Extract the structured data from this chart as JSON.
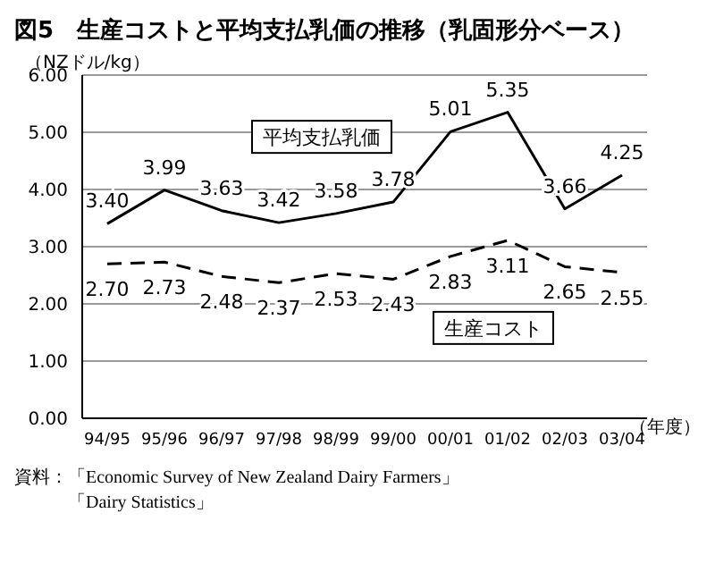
{
  "chart_data": {
    "type": "line",
    "title": "図5　生産コストと平均支払乳価の推移（乳固形分ベース）",
    "ylabel": "（NZドル/kg）",
    "xlabel": "（年度）",
    "categories": [
      "94/95",
      "95/96",
      "96/97",
      "97/98",
      "98/99",
      "99/00",
      "00/01",
      "01/02",
      "02/03",
      "03/04"
    ],
    "series": [
      {
        "name": "平均支払乳価",
        "color": "#000000",
        "line_style": "solid",
        "values": [
          3.4,
          3.99,
          3.63,
          3.42,
          3.58,
          3.78,
          5.01,
          5.35,
          3.66,
          4.25
        ],
        "value_labels": [
          "3.40",
          "3.99",
          "3.63",
          "3.42",
          "3.58",
          "3.78",
          "5.01",
          "5.35",
          "3.66",
          "4.25"
        ]
      },
      {
        "name": "生産コスト",
        "color": "#000000",
        "line_style": "dashed",
        "values": [
          2.7,
          2.73,
          2.48,
          2.37,
          2.53,
          2.43,
          2.83,
          3.11,
          2.65,
          2.55
        ],
        "value_labels": [
          "2.70",
          "2.73",
          "2.48",
          "2.37",
          "2.53",
          "2.43",
          "2.83",
          "3.11",
          "2.65",
          "2.55"
        ]
      }
    ],
    "ylim": [
      0,
      6
    ],
    "yticks": [
      {
        "value": 0,
        "label": "0.00"
      },
      {
        "value": 1,
        "label": "1.00"
      },
      {
        "value": 2,
        "label": "2.00"
      },
      {
        "value": 3,
        "label": "3.00"
      },
      {
        "value": 4,
        "label": "4.00"
      },
      {
        "value": 5,
        "label": "5.00"
      },
      {
        "value": 6,
        "label": "6.00"
      }
    ],
    "grid": "y",
    "legend": false,
    "marker": "none",
    "annotations": [
      "資料：「Economic Survey of New Zealand Dairy Farmers」",
      "「Dairy Statistics」"
    ]
  }
}
